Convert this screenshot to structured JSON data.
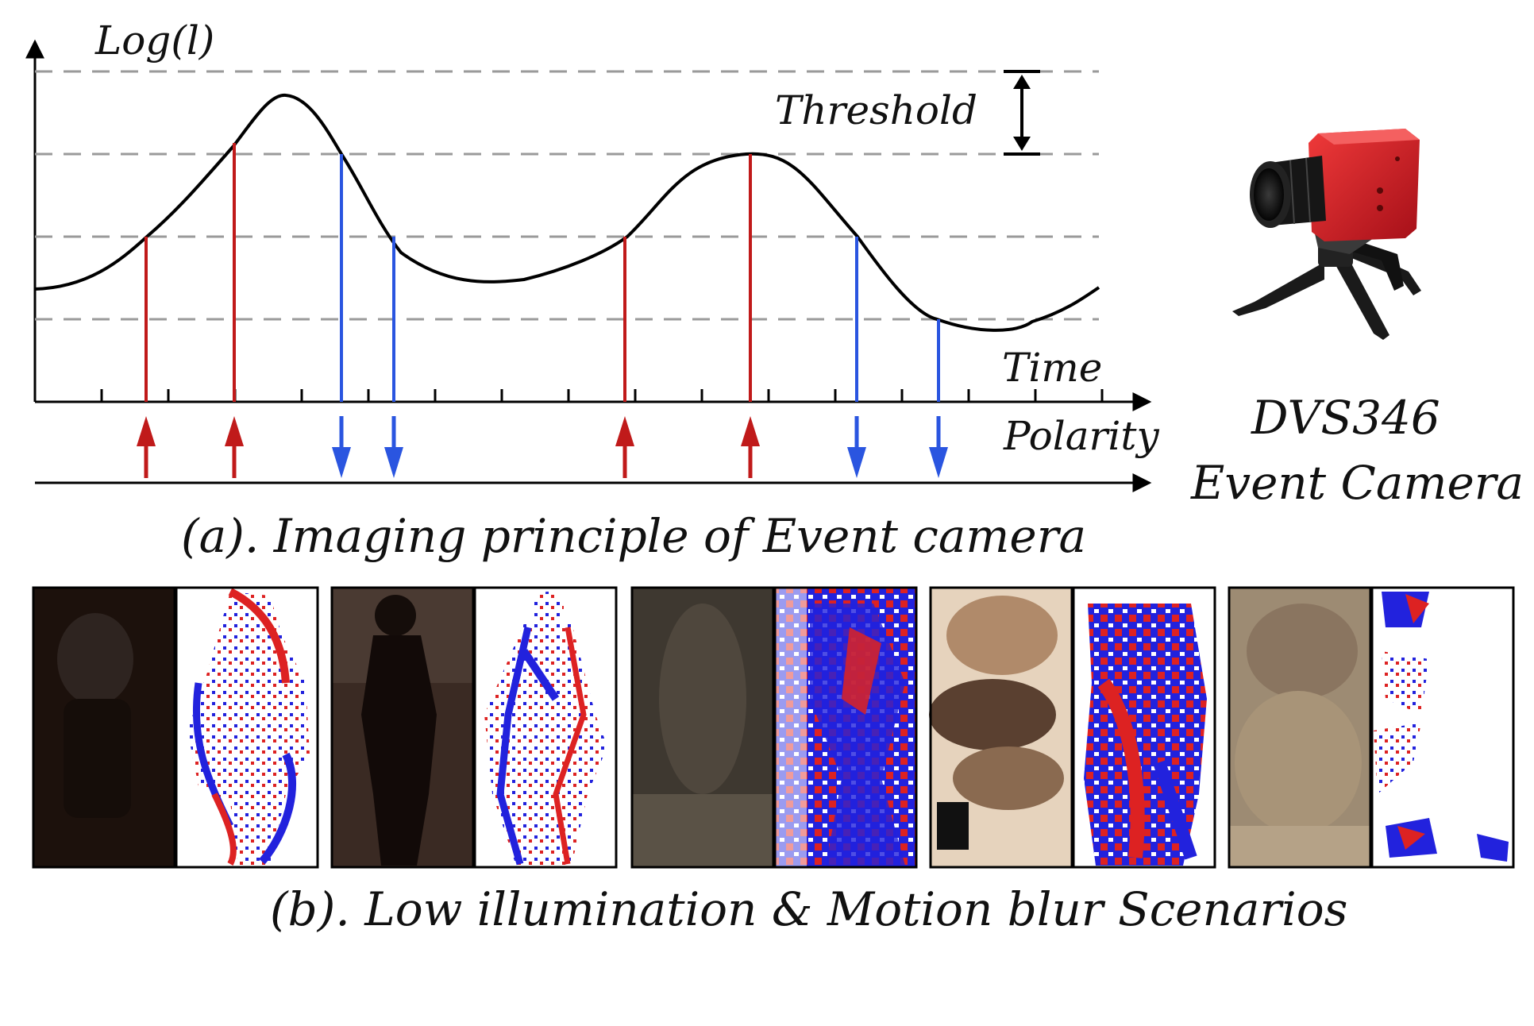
{
  "diagram": {
    "y_axis_label": "Log(l)",
    "x_axis_label": "Time",
    "polarity_label": "Polarity",
    "threshold_label": "Threshold",
    "caption_a": "(a). Imaging principle of Event camera",
    "caption_b": "(b). Low illumination & Motion blur Scenarios",
    "camera_name": "DVS346",
    "camera_type": "Event Camera",
    "colors": {
      "positive_event": "#c01a1a",
      "negative_event": "#2a55e0",
      "curve": "#000000",
      "threshold_lines": "#9a9a9a"
    },
    "events": [
      {
        "polarity": "positive"
      },
      {
        "polarity": "positive"
      },
      {
        "polarity": "negative"
      },
      {
        "polarity": "negative"
      },
      {
        "polarity": "positive"
      },
      {
        "polarity": "positive"
      },
      {
        "polarity": "negative"
      },
      {
        "polarity": "negative"
      }
    ],
    "scenarios": [
      {
        "rgb": "dark-person-back-view",
        "events": "event-frame-1"
      },
      {
        "rgb": "dark-person-silhouette",
        "events": "event-frame-2"
      },
      {
        "rgb": "blurred-dark-scene",
        "events": "event-frame-3"
      },
      {
        "rgb": "motion-blur-bright-scene",
        "events": "event-frame-4"
      },
      {
        "rgb": "blurred-beige-scene",
        "events": "event-frame-5"
      }
    ]
  }
}
